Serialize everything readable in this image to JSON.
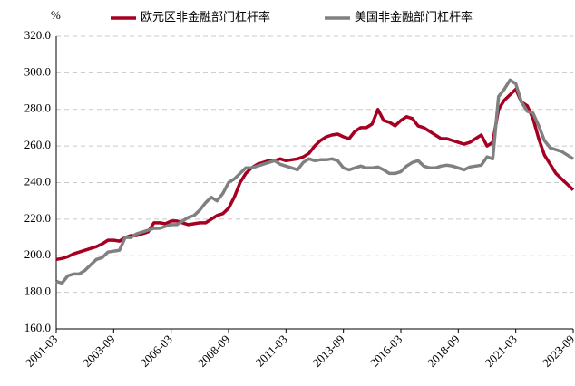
{
  "chart_data": {
    "type": "line",
    "y_label": "%",
    "categories": [
      "2001-03",
      null,
      null,
      null,
      null,
      null,
      null,
      null,
      null,
      null,
      "2003-09",
      null,
      null,
      null,
      null,
      null,
      null,
      null,
      null,
      null,
      "2006-03",
      null,
      null,
      null,
      null,
      null,
      null,
      null,
      null,
      null,
      "2008-09",
      null,
      null,
      null,
      null,
      null,
      null,
      null,
      null,
      null,
      "2011-03",
      null,
      null,
      null,
      null,
      null,
      null,
      null,
      null,
      null,
      "2013-09",
      null,
      null,
      null,
      null,
      null,
      null,
      null,
      null,
      null,
      "2016-03",
      null,
      null,
      null,
      null,
      null,
      null,
      null,
      null,
      null,
      "2018-09",
      null,
      null,
      null,
      null,
      null,
      null,
      null,
      null,
      null,
      "2021-03",
      null,
      null,
      null,
      null,
      null,
      null,
      null,
      null,
      null,
      "2023-09"
    ],
    "series": [
      {
        "name": "欧元区非金融部门杠杆率",
        "color": "#a50021",
        "values": [
          198,
          198.5,
          199.5,
          201,
          202,
          203,
          204,
          205,
          206.5,
          208.5,
          208.5,
          208,
          210,
          211,
          211,
          212,
          213,
          218,
          218,
          217.5,
          219,
          219,
          218,
          217,
          217.5,
          218,
          218,
          220,
          222,
          223,
          226,
          232,
          240,
          245,
          248,
          250,
          251,
          252,
          252,
          253,
          252,
          252.5,
          253,
          254,
          256,
          260,
          263,
          265,
          266,
          266.5,
          265,
          264,
          268,
          270,
          270,
          272,
          280,
          274,
          273,
          271,
          274,
          276,
          275,
          271,
          270,
          268,
          266,
          264,
          264,
          263,
          262,
          261,
          262,
          264,
          266,
          260,
          262,
          280,
          285,
          288,
          291,
          284,
          282,
          275,
          264,
          255,
          250,
          245,
          242,
          239,
          236
        ]
      },
      {
        "name": "美国非金融部门杠杆率",
        "color": "#808080",
        "values": [
          186,
          185,
          189,
          190,
          190,
          192,
          195,
          198,
          199,
          202,
          202.5,
          203,
          210,
          210,
          212,
          213,
          214,
          215,
          215,
          216,
          217,
          217,
          219,
          221,
          222,
          225,
          229,
          232,
          230,
          234,
          240,
          242,
          245,
          248,
          248,
          249,
          250,
          251,
          252,
          250,
          249,
          248,
          247,
          251,
          253,
          252,
          252.5,
          252.5,
          253,
          252,
          248,
          247,
          248,
          249,
          248,
          248,
          248.5,
          247,
          245,
          245,
          246,
          249,
          251,
          252,
          249,
          248,
          248,
          249,
          249.5,
          249,
          248,
          247,
          248.5,
          249,
          249.5,
          254,
          253,
          287,
          291,
          296,
          294,
          284,
          279,
          278,
          271,
          263,
          259,
          258,
          257,
          255,
          253
        ]
      }
    ],
    "ylim": [
      160,
      320
    ],
    "yticks": [
      {
        "value": 160,
        "label": "160.0"
      },
      {
        "value": 180,
        "label": "180.0"
      },
      {
        "value": 200,
        "label": "200.0"
      },
      {
        "value": 220,
        "label": "220.0"
      },
      {
        "value": 240,
        "label": "240.0"
      },
      {
        "value": 260,
        "label": "260.0"
      },
      {
        "value": 280,
        "label": "280.0"
      },
      {
        "value": 300,
        "label": "300.0"
      },
      {
        "value": 320,
        "label": "320.0"
      }
    ],
    "grid": true
  }
}
